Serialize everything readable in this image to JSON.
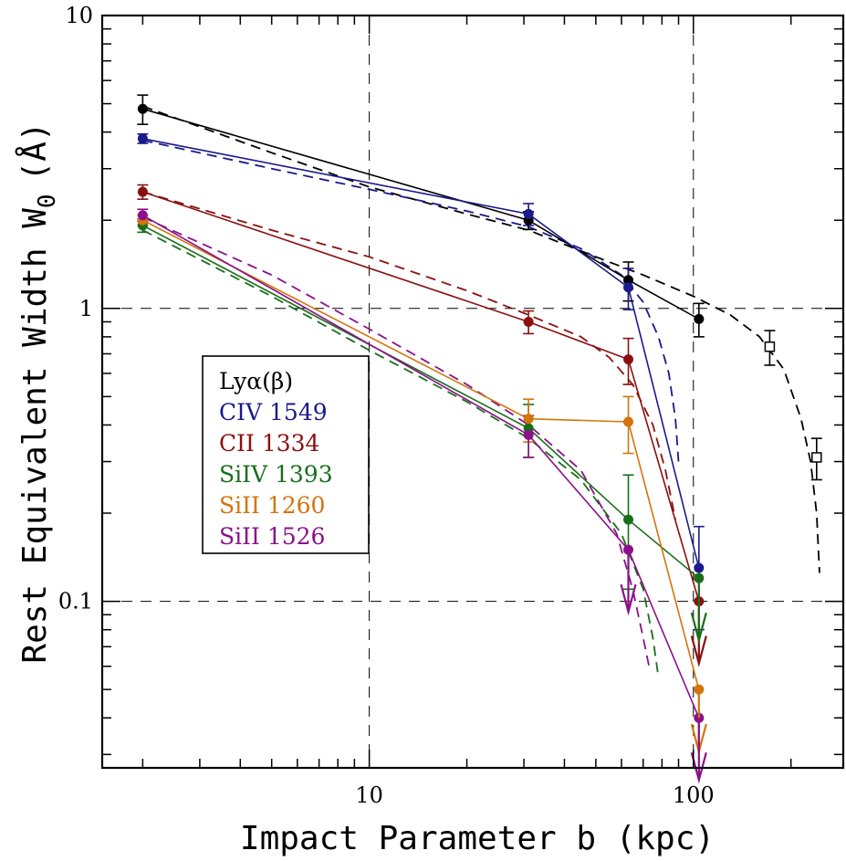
{
  "chart_data": {
    "type": "scatter",
    "title": "",
    "xlabel": "Impact Parameter b (kpc)",
    "ylabel": "Rest Equivalent Width W",
    "ylabel_subscript": "0",
    "ylabel_unit": "(Å)",
    "xscale": "log",
    "yscale": "log",
    "xlim": [
      1.5,
      290
    ],
    "ylim": [
      0.027,
      10
    ],
    "x_ticks": [
      {
        "value": 10,
        "label": "10"
      },
      {
        "value": 100,
        "label": "100"
      }
    ],
    "y_ticks": [
      {
        "value": 10,
        "label": "10"
      },
      {
        "value": 1,
        "label": "1"
      },
      {
        "value": 0.1,
        "label": "0.1"
      }
    ],
    "grid": true,
    "grid_style": "dashed",
    "legend_position": "center-left",
    "legend": [
      {
        "label": "Lyα(β)",
        "color": "#000000"
      },
      {
        "label": "CIV  1549",
        "color": "#1a1a8c"
      },
      {
        "label": "CII  1334",
        "color": "#8b1010"
      },
      {
        "label": "SiIV  1393",
        "color": "#1a6e1a"
      },
      {
        "label": "SiII  1260",
        "color": "#d4740a"
      },
      {
        "label": "SiII  1526",
        "color": "#8b108b"
      }
    ],
    "series": [
      {
        "name": "Lyα(β)",
        "color": "#000000",
        "x": [
          2.0,
          31.0,
          63.0,
          104.0
        ],
        "y": [
          4.8,
          2.0,
          1.25,
          0.92
        ],
        "err": [
          0.55,
          0.14,
          0.19,
          0.12
        ],
        "upper_limit": [
          false,
          false,
          false,
          false
        ],
        "model_x": [
          2.0,
          5,
          10,
          20,
          31,
          50,
          70,
          100,
          130,
          160,
          190,
          215,
          230,
          240,
          245
        ],
        "model_y": [
          4.9,
          3.4,
          2.6,
          2.1,
          1.85,
          1.5,
          1.3,
          1.1,
          0.95,
          0.8,
          0.62,
          0.42,
          0.3,
          0.2,
          0.125
        ]
      },
      {
        "name": "CIV  1549",
        "color": "#1a1a8c",
        "x": [
          2.0,
          31.0,
          63.0,
          104.0
        ],
        "y": [
          3.8,
          2.1,
          1.18,
          0.13
        ],
        "err": [
          0.14,
          0.18,
          0.19,
          0.05
        ],
        "upper_limit": [
          false,
          false,
          false,
          false
        ],
        "model_x": [
          2.0,
          5,
          10,
          20,
          31,
          45,
          60,
          70,
          78,
          84,
          88,
          90
        ],
        "model_y": [
          3.75,
          3.0,
          2.55,
          2.15,
          1.9,
          1.6,
          1.3,
          1.05,
          0.8,
          0.6,
          0.42,
          0.3
        ]
      },
      {
        "name": "CII  1334",
        "color": "#8b1010",
        "x": [
          2.0,
          31.0,
          63.0,
          104.0
        ],
        "y": [
          2.5,
          0.9,
          0.67,
          0.1
        ],
        "err": [
          0.14,
          0.08,
          0.12,
          0
        ],
        "upper_limit": [
          false,
          false,
          false,
          true
        ],
        "model_x": [
          2.0,
          5,
          10,
          20,
          31,
          45,
          55,
          65,
          75,
          82,
          88
        ],
        "model_y": [
          2.5,
          1.85,
          1.5,
          1.15,
          0.95,
          0.8,
          0.68,
          0.55,
          0.4,
          0.28,
          0.19
        ]
      },
      {
        "name": "SiIV  1393",
        "color": "#1a6e1a",
        "x": [
          2.0,
          31.0,
          63.0,
          104.0
        ],
        "y": [
          1.92,
          0.39,
          0.19,
          0.12
        ],
        "err": [
          0.1,
          0.08,
          0.08,
          0
        ],
        "upper_limit": [
          false,
          false,
          false,
          true
        ],
        "model_x": [
          2.0,
          5,
          10,
          20,
          31,
          45,
          60,
          70,
          75,
          78
        ],
        "model_y": [
          1.85,
          1.1,
          0.72,
          0.48,
          0.36,
          0.26,
          0.17,
          0.11,
          0.075,
          0.055
        ]
      },
      {
        "name": "SiII  1260",
        "color": "#d4740a",
        "x": [
          2.0,
          31.0,
          63.0,
          104.0
        ],
        "y": [
          2.0,
          0.42,
          0.41,
          0.05
        ],
        "err": [
          0.08,
          0.07,
          0.09,
          0
        ],
        "upper_limit": [
          false,
          false,
          false,
          true
        ],
        "model_x": [],
        "model_y": []
      },
      {
        "name": "SiII  1526",
        "color": "#8b108b",
        "x": [
          2.0,
          31.0,
          63.0,
          104.0
        ],
        "y": [
          2.08,
          0.37,
          0.15,
          0.04
        ],
        "err": [
          0.1,
          0.06,
          0,
          0
        ],
        "upper_limit": [
          false,
          false,
          true,
          true
        ],
        "model_x": [
          2.0,
          5,
          10,
          20,
          31,
          45,
          58,
          65,
          70,
          73
        ],
        "model_y": [
          2.05,
          1.3,
          0.85,
          0.55,
          0.4,
          0.28,
          0.17,
          0.11,
          0.075,
          0.06
        ]
      },
      {
        "name": "",
        "color": "#000000",
        "marker": "open-square",
        "x": [
          172.0,
          240.0
        ],
        "y": [
          0.74,
          0.31
        ],
        "err": [
          0.1,
          0.05
        ],
        "upper_limit": [
          false,
          false
        ],
        "model_x": [],
        "model_y": []
      }
    ]
  }
}
